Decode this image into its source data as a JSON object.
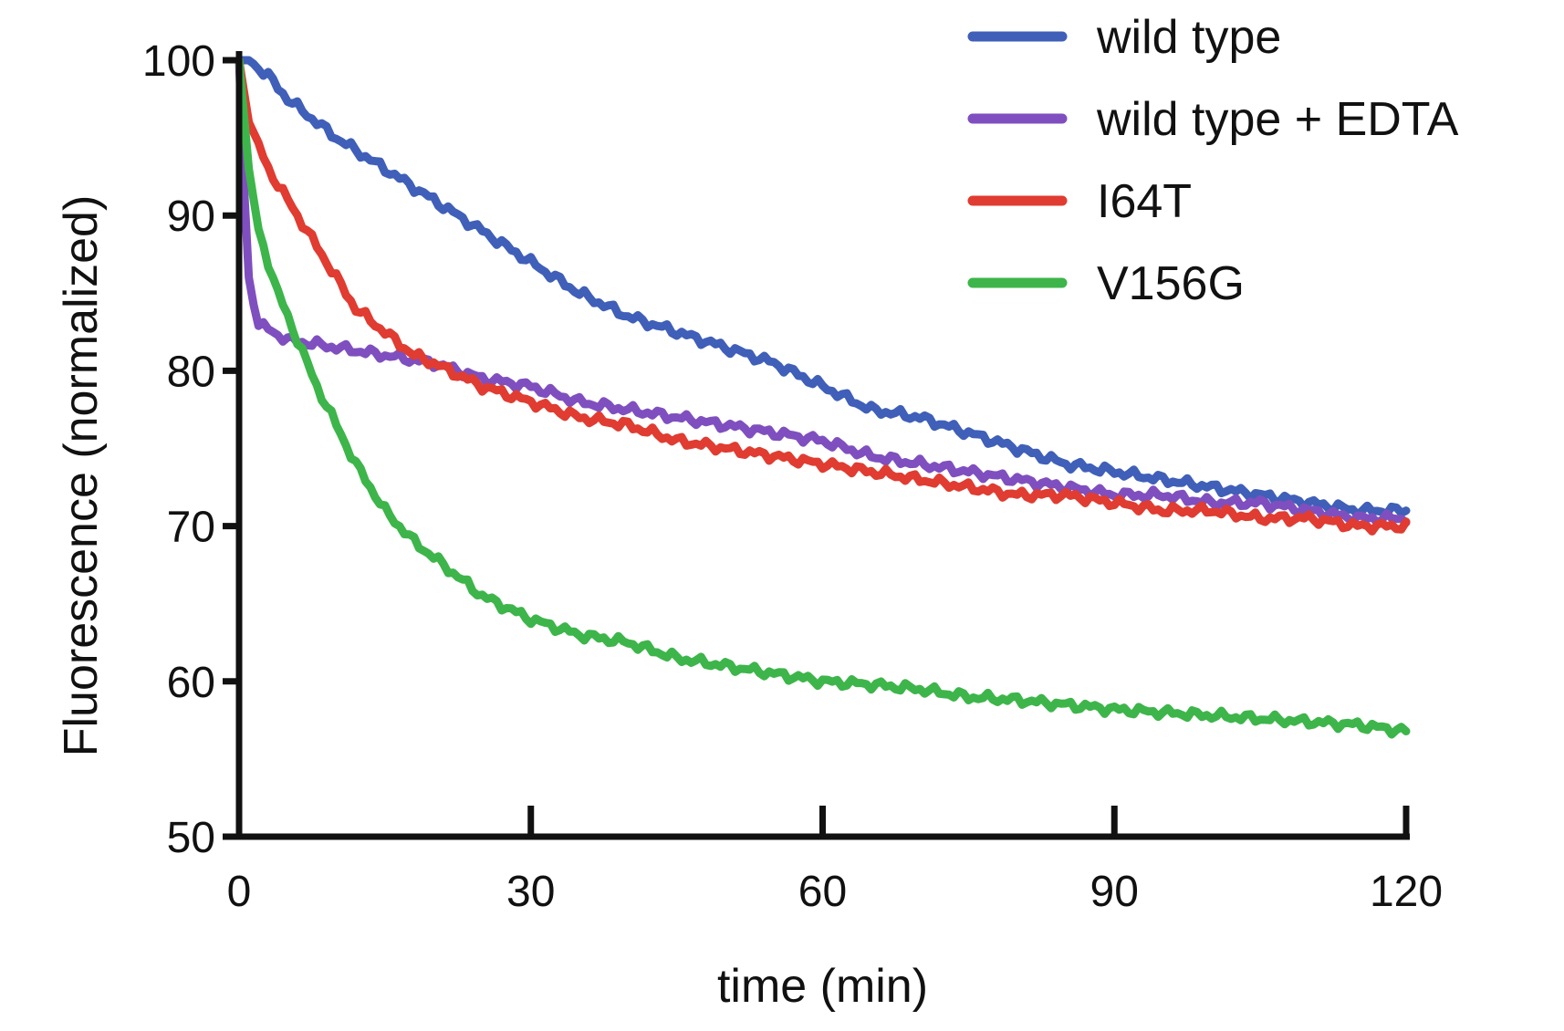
{
  "chart_data": {
    "type": "line",
    "title": "",
    "xlabel": "time (min)",
    "ylabel": "Fluorescence (normalized)",
    "xlim": [
      0,
      120
    ],
    "ylim": [
      50,
      100
    ],
    "xticks": [
      0,
      30,
      60,
      90,
      120
    ],
    "yticks": [
      50,
      60,
      70,
      80,
      90,
      100
    ],
    "legend_position": "top-right",
    "series": [
      {
        "name": "wild type",
        "color": "#3f5fb8",
        "x": [
          0,
          1,
          3,
          5,
          8,
          10,
          15,
          20,
          25,
          30,
          35,
          40,
          45,
          50,
          55,
          60,
          65,
          70,
          75,
          80,
          85,
          90,
          95,
          100,
          105,
          110,
          115,
          120
        ],
        "y": [
          100,
          100,
          99,
          97.5,
          96,
          95,
          93,
          91,
          89,
          87,
          85,
          83.5,
          82.5,
          81.5,
          80.5,
          79,
          77.5,
          77,
          76,
          75,
          74,
          73.5,
          73,
          72.5,
          72,
          71.5,
          71,
          71
        ]
      },
      {
        "name": "wild type + EDTA",
        "color": "#7f4fbf",
        "x": [
          0,
          0.5,
          1,
          2,
          5,
          10,
          15,
          20,
          25,
          30,
          35,
          40,
          45,
          50,
          55,
          60,
          65,
          70,
          75,
          80,
          85,
          90,
          95,
          100,
          105,
          110,
          115,
          120
        ],
        "y": [
          100,
          92,
          86,
          83,
          82,
          81.5,
          81,
          80.5,
          79.5,
          79,
          78,
          77.5,
          77,
          76.5,
          76,
          75.5,
          74.5,
          74,
          73.5,
          73,
          72.5,
          72,
          72,
          71.5,
          71.5,
          71,
          70.5,
          70.5
        ]
      },
      {
        "name": "I64T",
        "color": "#e03c31",
        "x": [
          0,
          1,
          3,
          5,
          8,
          10,
          12,
          15,
          18,
          20,
          25,
          30,
          35,
          40,
          45,
          50,
          55,
          60,
          65,
          70,
          75,
          80,
          85,
          90,
          95,
          100,
          105,
          110,
          115,
          120
        ],
        "y": [
          100,
          96,
          93,
          91,
          88,
          86,
          84,
          82.5,
          81,
          80.5,
          79,
          78,
          77,
          76.5,
          75.5,
          75,
          74.5,
          74,
          73.5,
          73,
          72.5,
          72,
          72,
          71.5,
          71,
          71,
          70.5,
          70.5,
          70,
          70
        ]
      },
      {
        "name": "V156G",
        "color": "#3db54a",
        "x": [
          0,
          1,
          2,
          4,
          6,
          8,
          10,
          12,
          15,
          18,
          20,
          25,
          30,
          35,
          40,
          45,
          50,
          55,
          60,
          65,
          70,
          75,
          80,
          85,
          90,
          95,
          100,
          105,
          110,
          115,
          120
        ],
        "y": [
          100,
          93,
          89,
          85,
          82,
          79,
          76.5,
          74,
          71,
          69,
          68,
          65.5,
          64,
          63,
          62.5,
          61.5,
          61,
          60.5,
          60,
          59.8,
          59.5,
          59,
          58.8,
          58.5,
          58.2,
          58,
          57.8,
          57.6,
          57.4,
          57.2,
          56.8
        ]
      }
    ]
  }
}
